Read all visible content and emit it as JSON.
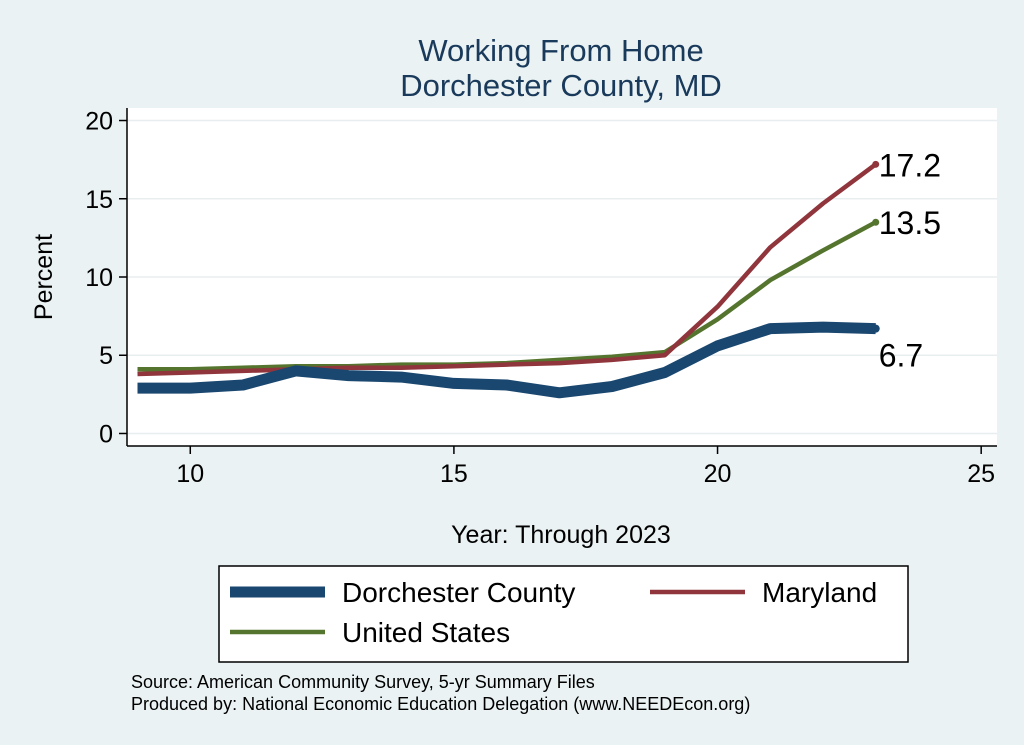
{
  "chart_data": {
    "type": "line",
    "title": [
      "Working From Home",
      "Dorchester County, MD"
    ],
    "xlabel": "Year: Through 2023",
    "ylabel": "Percent",
    "xlim": [
      8.8,
      25.3
    ],
    "ylim": [
      -0.8,
      20.8
    ],
    "xticks": [
      10,
      15,
      20,
      25
    ],
    "yticks": [
      0,
      5,
      10,
      15,
      20
    ],
    "grid": true,
    "legend_position": "bottom",
    "x": [
      9,
      10,
      11,
      12,
      13,
      14,
      15,
      16,
      17,
      18,
      19,
      20,
      21,
      22,
      23
    ],
    "series": [
      {
        "name": "Dorchester County",
        "color": "#1a476f",
        "values": [
          2.9,
          2.9,
          3.1,
          4.0,
          3.7,
          3.6,
          3.2,
          3.1,
          2.6,
          3.0,
          3.9,
          5.6,
          6.7,
          6.8,
          6.7
        ],
        "end_label": "6.7"
      },
      {
        "name": "Maryland",
        "color": "#90353b",
        "values": [
          3.8,
          3.9,
          4.0,
          4.1,
          4.2,
          4.2,
          4.3,
          4.4,
          4.5,
          4.7,
          5.0,
          8.1,
          11.9,
          14.7,
          17.2
        ],
        "end_label": "17.2"
      },
      {
        "name": "United States",
        "color": "#55752f",
        "values": [
          4.1,
          4.1,
          4.2,
          4.3,
          4.3,
          4.4,
          4.4,
          4.5,
          4.7,
          4.9,
          5.2,
          7.3,
          9.8,
          11.7,
          13.5
        ],
        "end_label": "13.5"
      }
    ]
  },
  "footer": {
    "source": "Source: American Community Survey, 5-yr Summary Files",
    "produced_by": "Produced by: National Economic Education Delegation (www.NEEDEcon.org)"
  }
}
